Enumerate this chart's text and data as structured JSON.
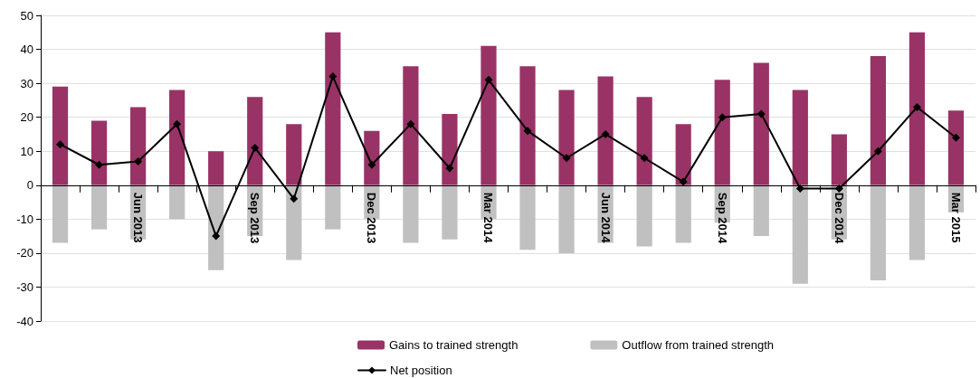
{
  "chart_data": {
    "type": "bar",
    "stacked": true,
    "categories": [
      null,
      null,
      "Jun 2013",
      null,
      null,
      "Sep 2013",
      null,
      null,
      "Dec 2013",
      null,
      null,
      "Mar 2014",
      null,
      null,
      "Jun 2014",
      null,
      null,
      "Sep 2014",
      null,
      null,
      "Dec 2014",
      null,
      null,
      "Mar 2015"
    ],
    "series": [
      {
        "name": "Gains to trained strength",
        "color": "#993366",
        "values": [
          29,
          19,
          23,
          28,
          10,
          26,
          18,
          45,
          16,
          35,
          21,
          41,
          35,
          28,
          32,
          26,
          18,
          31,
          36,
          28,
          15,
          38,
          45,
          22
        ]
      },
      {
        "name": "Outflow from trained strength",
        "color": "#c0c0c0",
        "values": [
          -17,
          -13,
          -16,
          -10,
          -25,
          -15,
          -22,
          -13,
          -10,
          -17,
          -16,
          -10,
          -19,
          -20,
          -17,
          -18,
          -17,
          -11,
          -15,
          -29,
          -16,
          -28,
          -22,
          -8
        ]
      },
      {
        "name": "Net position",
        "type": "line",
        "color": "#000000",
        "marker": "diamond",
        "values": [
          12,
          6,
          7,
          18,
          -15,
          11,
          -4,
          32,
          6,
          18,
          5,
          31,
          16,
          8,
          15,
          8,
          1,
          20,
          21,
          -1,
          -1,
          10,
          23,
          14
        ]
      }
    ],
    "ylim": [
      -40,
      50
    ],
    "yticks": [
      -40,
      -30,
      -20,
      -10,
      0,
      10,
      20,
      30,
      40,
      50
    ],
    "grid": "y",
    "legend": "bottom"
  }
}
